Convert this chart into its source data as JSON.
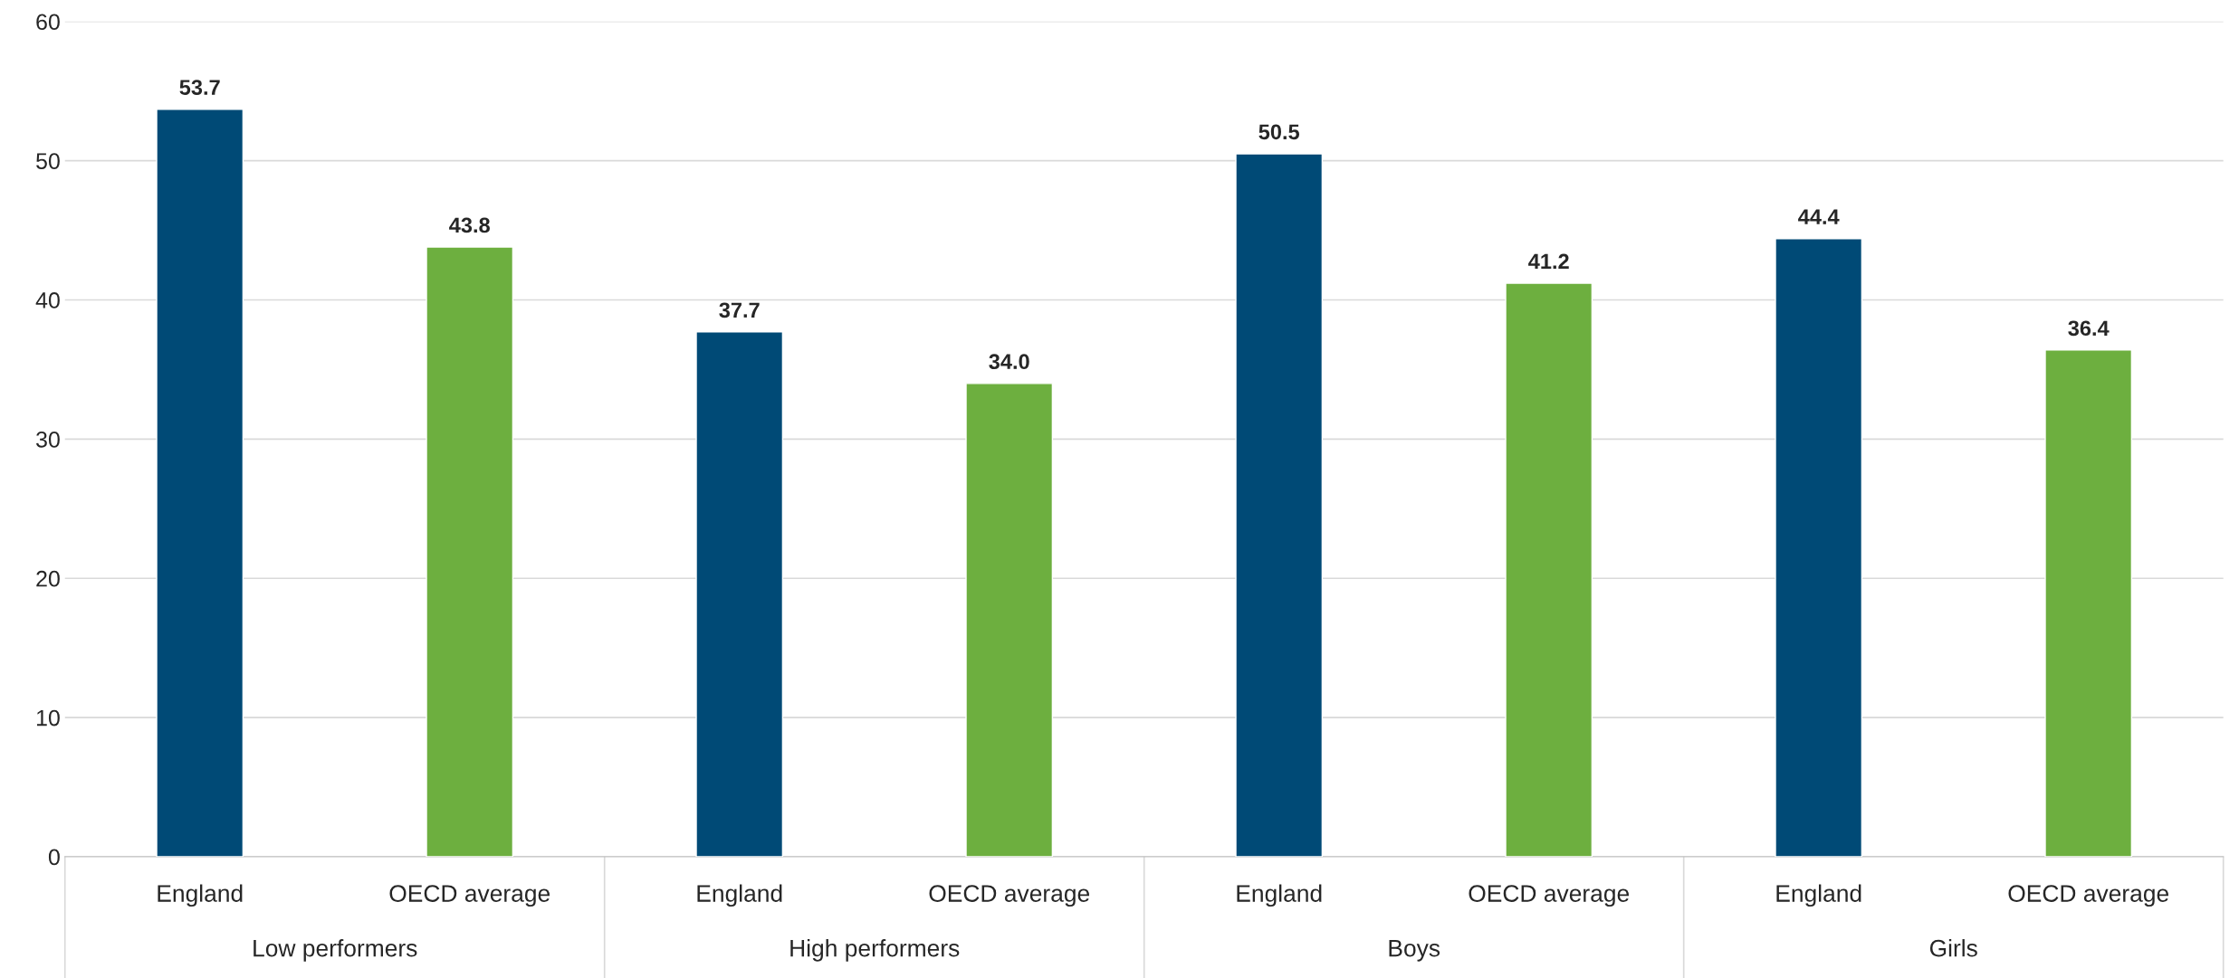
{
  "chart_data": {
    "type": "bar",
    "categories": [
      "England",
      "OECD average",
      "England",
      "OECD average",
      "England",
      "OECD average",
      "England",
      "OECD average"
    ],
    "values": [
      53.7,
      43.8,
      37.7,
      34.0,
      50.5,
      41.2,
      44.4,
      36.4
    ],
    "colors": [
      "#004a76",
      "#6daf3f",
      "#004a76",
      "#6daf3f",
      "#004a76",
      "#6daf3f",
      "#004a76",
      "#6daf3f"
    ],
    "annotations": [
      "Low performers",
      "High performers",
      "Boys",
      "Girls"
    ],
    "ylim": [
      0,
      60
    ],
    "yticks": [
      0,
      10,
      20,
      30,
      40,
      50,
      60
    ],
    "value_labels": [
      "53.7",
      "43.8",
      "37.7",
      "34.0",
      "50.5",
      "41.2",
      "44.4",
      "36.4"
    ],
    "grid": "y"
  }
}
